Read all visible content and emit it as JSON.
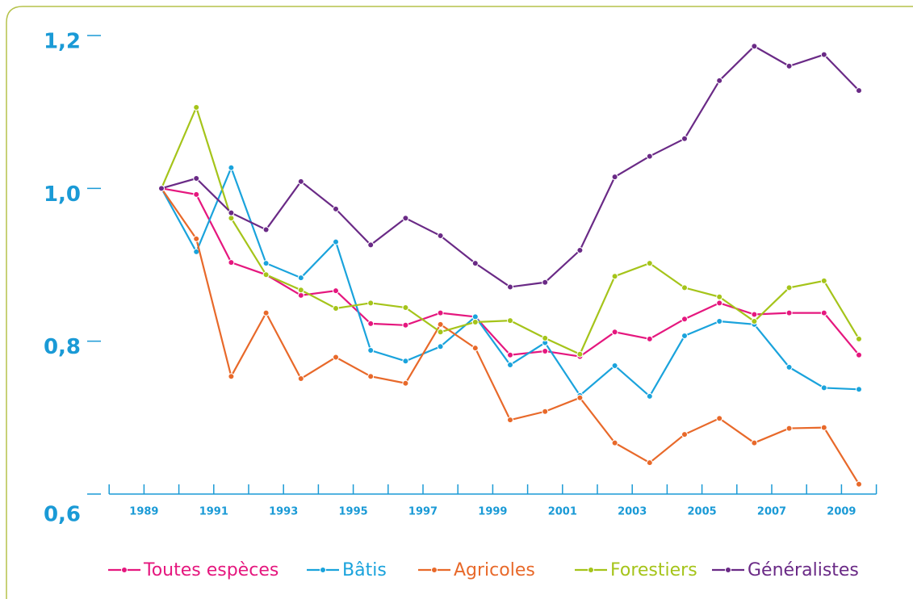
{
  "chart_data": {
    "type": "line",
    "categories": [
      "1989",
      null,
      "1991",
      null,
      "1993",
      null,
      "1995",
      null,
      "1997",
      null,
      "1999",
      null,
      "2001",
      null,
      "2003",
      null,
      "2005",
      null,
      "2007",
      null,
      "2009"
    ],
    "series": [
      {
        "name": "Toutes espèces",
        "color": "#e5177e",
        "values": [
          1.0,
          0.992,
          0.903,
          0.887,
          0.86,
          0.866,
          0.823,
          0.821,
          0.837,
          0.832,
          0.782,
          0.787,
          0.78,
          0.812,
          0.803,
          0.829,
          0.85,
          0.835,
          0.837,
          0.837,
          0.782
        ]
      },
      {
        "name": "Bâtis",
        "color": "#1aa3dc",
        "values": [
          1.0,
          0.917,
          1.027,
          0.902,
          0.883,
          0.93,
          0.788,
          0.774,
          0.793,
          0.832,
          0.769,
          0.798,
          0.729,
          0.768,
          0.728,
          0.807,
          0.826,
          0.822,
          0.766,
          0.739,
          0.737
        ]
      },
      {
        "name": "Agricoles",
        "color": "#e8692a",
        "values": [
          1.0,
          0.934,
          0.754,
          0.837,
          0.751,
          0.779,
          0.754,
          0.745,
          0.822,
          0.791,
          0.697,
          0.708,
          0.726,
          0.667,
          0.641,
          0.678,
          0.699,
          0.667,
          0.686,
          0.687,
          0.613
        ]
      },
      {
        "name": "Forestiers",
        "color": "#a5c41a",
        "values": [
          1.0,
          1.106,
          0.961,
          0.887,
          0.867,
          0.843,
          0.85,
          0.844,
          0.812,
          0.825,
          0.827,
          0.804,
          0.783,
          0.885,
          0.902,
          0.87,
          0.858,
          0.826,
          0.87,
          0.879,
          0.803
        ]
      },
      {
        "name": "Généralistes",
        "color": "#6a2a86",
        "values": [
          1.0,
          1.013,
          0.968,
          0.946,
          1.009,
          0.973,
          0.926,
          0.961,
          0.938,
          0.902,
          0.871,
          0.877,
          0.919,
          1.015,
          1.042,
          1.065,
          1.141,
          1.186,
          1.16,
          1.175,
          1.128
        ]
      }
    ],
    "ylim": [
      0.6,
      1.2
    ],
    "yticks": [
      {
        "value": 0.6,
        "label": "0,6"
      },
      {
        "value": 0.8,
        "label": "0,8"
      },
      {
        "value": 1.0,
        "label": "1,0"
      },
      {
        "value": 1.2,
        "label": "1,2"
      }
    ]
  }
}
